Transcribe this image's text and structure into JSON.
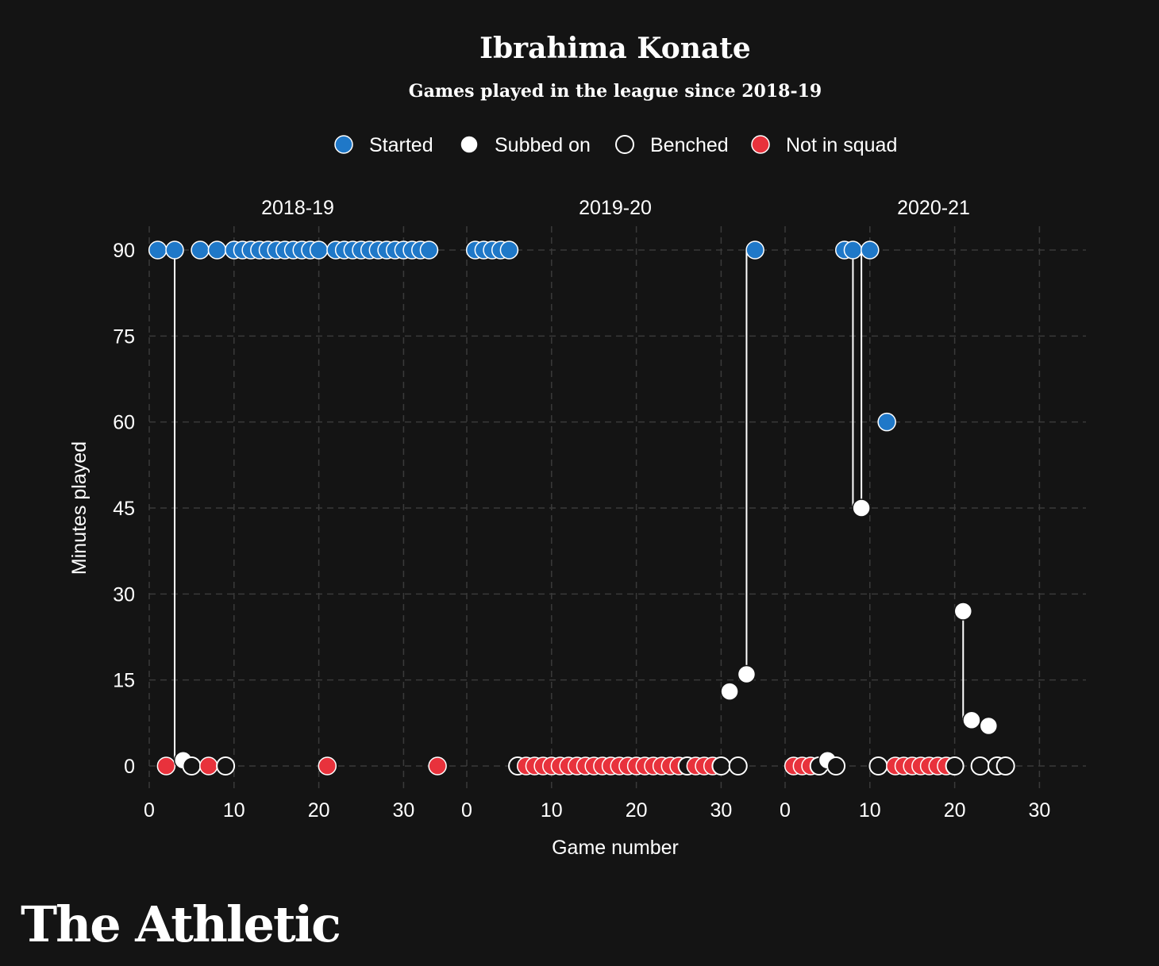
{
  "chart_data": {
    "type": "scatter",
    "title": "Ibrahima Konate",
    "subtitle": "Games played in the league since 2018-19",
    "xlabel": "Game number",
    "ylabel": "Minutes played",
    "xlim": [
      0,
      33
    ],
    "ylim": [
      0,
      90
    ],
    "xticks": [
      0,
      10,
      20,
      30
    ],
    "yticks": [
      0,
      15,
      30,
      45,
      60,
      75,
      90
    ],
    "grid": true,
    "legend_position": "top",
    "legend": [
      {
        "key": "started",
        "label": "Started",
        "color": "#1f78c8"
      },
      {
        "key": "subbed",
        "label": "Subbed on",
        "color": "#ffffff"
      },
      {
        "key": "benched",
        "label": "Benched",
        "color": "#141414"
      },
      {
        "key": "notsquad",
        "label": "Not in squad",
        "color": "#e8323c"
      }
    ],
    "panels": [
      {
        "season": "2018-19",
        "points": [
          {
            "x": 1,
            "y": 90,
            "status": "started"
          },
          {
            "x": 2,
            "y": 0,
            "status": "notsquad"
          },
          {
            "x": 3,
            "y": 90,
            "status": "started"
          },
          {
            "x": 4,
            "y": 1,
            "status": "subbed"
          },
          {
            "x": 5,
            "y": 0,
            "status": "benched"
          },
          {
            "x": 6,
            "y": 90,
            "status": "started"
          },
          {
            "x": 7,
            "y": 0,
            "status": "notsquad"
          },
          {
            "x": 8,
            "y": 90,
            "status": "started"
          },
          {
            "x": 9,
            "y": 0,
            "status": "benched"
          },
          {
            "x": 10,
            "y": 90,
            "status": "started"
          },
          {
            "x": 11,
            "y": 90,
            "status": "started"
          },
          {
            "x": 12,
            "y": 90,
            "status": "started"
          },
          {
            "x": 13,
            "y": 90,
            "status": "started"
          },
          {
            "x": 14,
            "y": 90,
            "status": "started"
          },
          {
            "x": 15,
            "y": 90,
            "status": "started"
          },
          {
            "x": 16,
            "y": 90,
            "status": "started"
          },
          {
            "x": 17,
            "y": 90,
            "status": "started"
          },
          {
            "x": 18,
            "y": 90,
            "status": "started"
          },
          {
            "x": 19,
            "y": 90,
            "status": "started"
          },
          {
            "x": 20,
            "y": 90,
            "status": "started"
          },
          {
            "x": 21,
            "y": 0,
            "status": "notsquad"
          },
          {
            "x": 22,
            "y": 90,
            "status": "started"
          },
          {
            "x": 23,
            "y": 90,
            "status": "started"
          },
          {
            "x": 24,
            "y": 90,
            "status": "started"
          },
          {
            "x": 25,
            "y": 90,
            "status": "started"
          },
          {
            "x": 26,
            "y": 90,
            "status": "started"
          },
          {
            "x": 27,
            "y": 90,
            "status": "started"
          },
          {
            "x": 28,
            "y": 90,
            "status": "started"
          },
          {
            "x": 29,
            "y": 90,
            "status": "started"
          },
          {
            "x": 30,
            "y": 90,
            "status": "started"
          },
          {
            "x": 31,
            "y": 90,
            "status": "started"
          },
          {
            "x": 32,
            "y": 90,
            "status": "started"
          },
          {
            "x": 33,
            "y": 90,
            "status": "started"
          },
          {
            "x": 34,
            "y": 0,
            "status": "notsquad"
          }
        ]
      },
      {
        "season": "2019-20",
        "points": [
          {
            "x": 1,
            "y": 90,
            "status": "started"
          },
          {
            "x": 2,
            "y": 90,
            "status": "started"
          },
          {
            "x": 3,
            "y": 90,
            "status": "started"
          },
          {
            "x": 4,
            "y": 90,
            "status": "started"
          },
          {
            "x": 5,
            "y": 90,
            "status": "started"
          },
          {
            "x": 6,
            "y": 0,
            "status": "benched"
          },
          {
            "x": 7,
            "y": 0,
            "status": "notsquad"
          },
          {
            "x": 8,
            "y": 0,
            "status": "notsquad"
          },
          {
            "x": 9,
            "y": 0,
            "status": "notsquad"
          },
          {
            "x": 10,
            "y": 0,
            "status": "notsquad"
          },
          {
            "x": 11,
            "y": 0,
            "status": "notsquad"
          },
          {
            "x": 12,
            "y": 0,
            "status": "notsquad"
          },
          {
            "x": 13,
            "y": 0,
            "status": "notsquad"
          },
          {
            "x": 14,
            "y": 0,
            "status": "notsquad"
          },
          {
            "x": 15,
            "y": 0,
            "status": "notsquad"
          },
          {
            "x": 16,
            "y": 0,
            "status": "notsquad"
          },
          {
            "x": 17,
            "y": 0,
            "status": "notsquad"
          },
          {
            "x": 18,
            "y": 0,
            "status": "notsquad"
          },
          {
            "x": 19,
            "y": 0,
            "status": "notsquad"
          },
          {
            "x": 20,
            "y": 0,
            "status": "notsquad"
          },
          {
            "x": 21,
            "y": 0,
            "status": "notsquad"
          },
          {
            "x": 22,
            "y": 0,
            "status": "notsquad"
          },
          {
            "x": 23,
            "y": 0,
            "status": "notsquad"
          },
          {
            "x": 24,
            "y": 0,
            "status": "notsquad"
          },
          {
            "x": 25,
            "y": 0,
            "status": "notsquad"
          },
          {
            "x": 26,
            "y": 0,
            "status": "benched"
          },
          {
            "x": 27,
            "y": 0,
            "status": "notsquad"
          },
          {
            "x": 28,
            "y": 0,
            "status": "notsquad"
          },
          {
            "x": 29,
            "y": 0,
            "status": "notsquad"
          },
          {
            "x": 30,
            "y": 0,
            "status": "benched"
          },
          {
            "x": 31,
            "y": 13,
            "status": "subbed"
          },
          {
            "x": 32,
            "y": 0,
            "status": "benched"
          },
          {
            "x": 33,
            "y": 16,
            "status": "subbed"
          },
          {
            "x": 34,
            "y": 90,
            "status": "started"
          }
        ]
      },
      {
        "season": "2020-21",
        "points": [
          {
            "x": 1,
            "y": 0,
            "status": "notsquad"
          },
          {
            "x": 2,
            "y": 0,
            "status": "notsquad"
          },
          {
            "x": 3,
            "y": 0,
            "status": "notsquad"
          },
          {
            "x": 4,
            "y": 0,
            "status": "benched"
          },
          {
            "x": 5,
            "y": 1,
            "status": "subbed"
          },
          {
            "x": 6,
            "y": 0,
            "status": "benched"
          },
          {
            "x": 7,
            "y": 90,
            "status": "started"
          },
          {
            "x": 8,
            "y": 90,
            "status": "started"
          },
          {
            "x": 9,
            "y": 45,
            "status": "subbed"
          },
          {
            "x": 10,
            "y": 90,
            "status": "started"
          },
          {
            "x": 11,
            "y": 0,
            "status": "benched"
          },
          {
            "x": 12,
            "y": 60,
            "status": "started"
          },
          {
            "x": 13,
            "y": 0,
            "status": "notsquad"
          },
          {
            "x": 14,
            "y": 0,
            "status": "notsquad"
          },
          {
            "x": 15,
            "y": 0,
            "status": "notsquad"
          },
          {
            "x": 16,
            "y": 0,
            "status": "notsquad"
          },
          {
            "x": 17,
            "y": 0,
            "status": "notsquad"
          },
          {
            "x": 18,
            "y": 0,
            "status": "notsquad"
          },
          {
            "x": 19,
            "y": 0,
            "status": "notsquad"
          },
          {
            "x": 20,
            "y": 0,
            "status": "benched"
          },
          {
            "x": 21,
            "y": 27,
            "status": "subbed"
          },
          {
            "x": 22,
            "y": 8,
            "status": "subbed"
          },
          {
            "x": 23,
            "y": 0,
            "status": "benched"
          },
          {
            "x": 24,
            "y": 7,
            "status": "subbed"
          },
          {
            "x": 25,
            "y": 0,
            "status": "benched"
          },
          {
            "x": 26,
            "y": 0,
            "status": "benched"
          }
        ]
      }
    ],
    "connectors": [
      {
        "panel": 0,
        "from": [
          3,
          90
        ],
        "to": [
          3,
          1
        ]
      },
      {
        "panel": 1,
        "from": [
          33,
          16
        ],
        "to": [
          33,
          90
        ]
      },
      {
        "panel": 2,
        "from": [
          8,
          90
        ],
        "to": [
          8,
          45
        ]
      },
      {
        "panel": 2,
        "from": [
          9,
          90
        ],
        "to": [
          9,
          45
        ]
      },
      {
        "panel": 2,
        "from": [
          21,
          27
        ],
        "to": [
          21,
          8
        ]
      }
    ]
  },
  "branding": {
    "logo_text": "The Athletic"
  }
}
